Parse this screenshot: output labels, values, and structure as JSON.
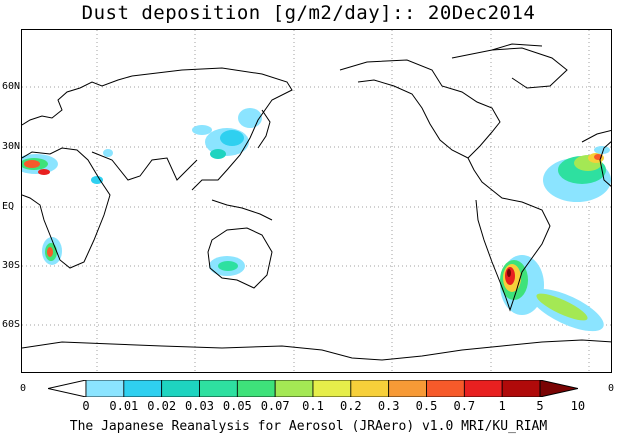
{
  "title": "Dust deposition [g/m2/day]:: 20Dec2014",
  "lat_labels": [
    "60N",
    "30N",
    "EQ",
    "30S",
    "60S"
  ],
  "axis_ends": {
    "left": "0",
    "right": "0"
  },
  "colorbar": {
    "labels": [
      "0",
      "0.01",
      "0.02",
      "0.03",
      "0.05",
      "0.07",
      "0.1",
      "0.2",
      "0.3",
      "0.5",
      "0.7",
      "1",
      "5",
      "10"
    ],
    "colors": [
      "#ffffff",
      "#8be4ff",
      "#2fd0f0",
      "#1ed4c0",
      "#2ee0a0",
      "#3ee27a",
      "#a4e854",
      "#e6ee4a",
      "#f7d03a",
      "#f79a36",
      "#f75a2a",
      "#e82020",
      "#b00a0a",
      "#7a0404"
    ]
  },
  "colors": {
    "land_outline": "#000000",
    "grid": "#a0a0a0"
  },
  "footer": "The Japanese Reanalysis for Aerosol (JRAero) v1.0 MRI/KU_RIAM"
}
